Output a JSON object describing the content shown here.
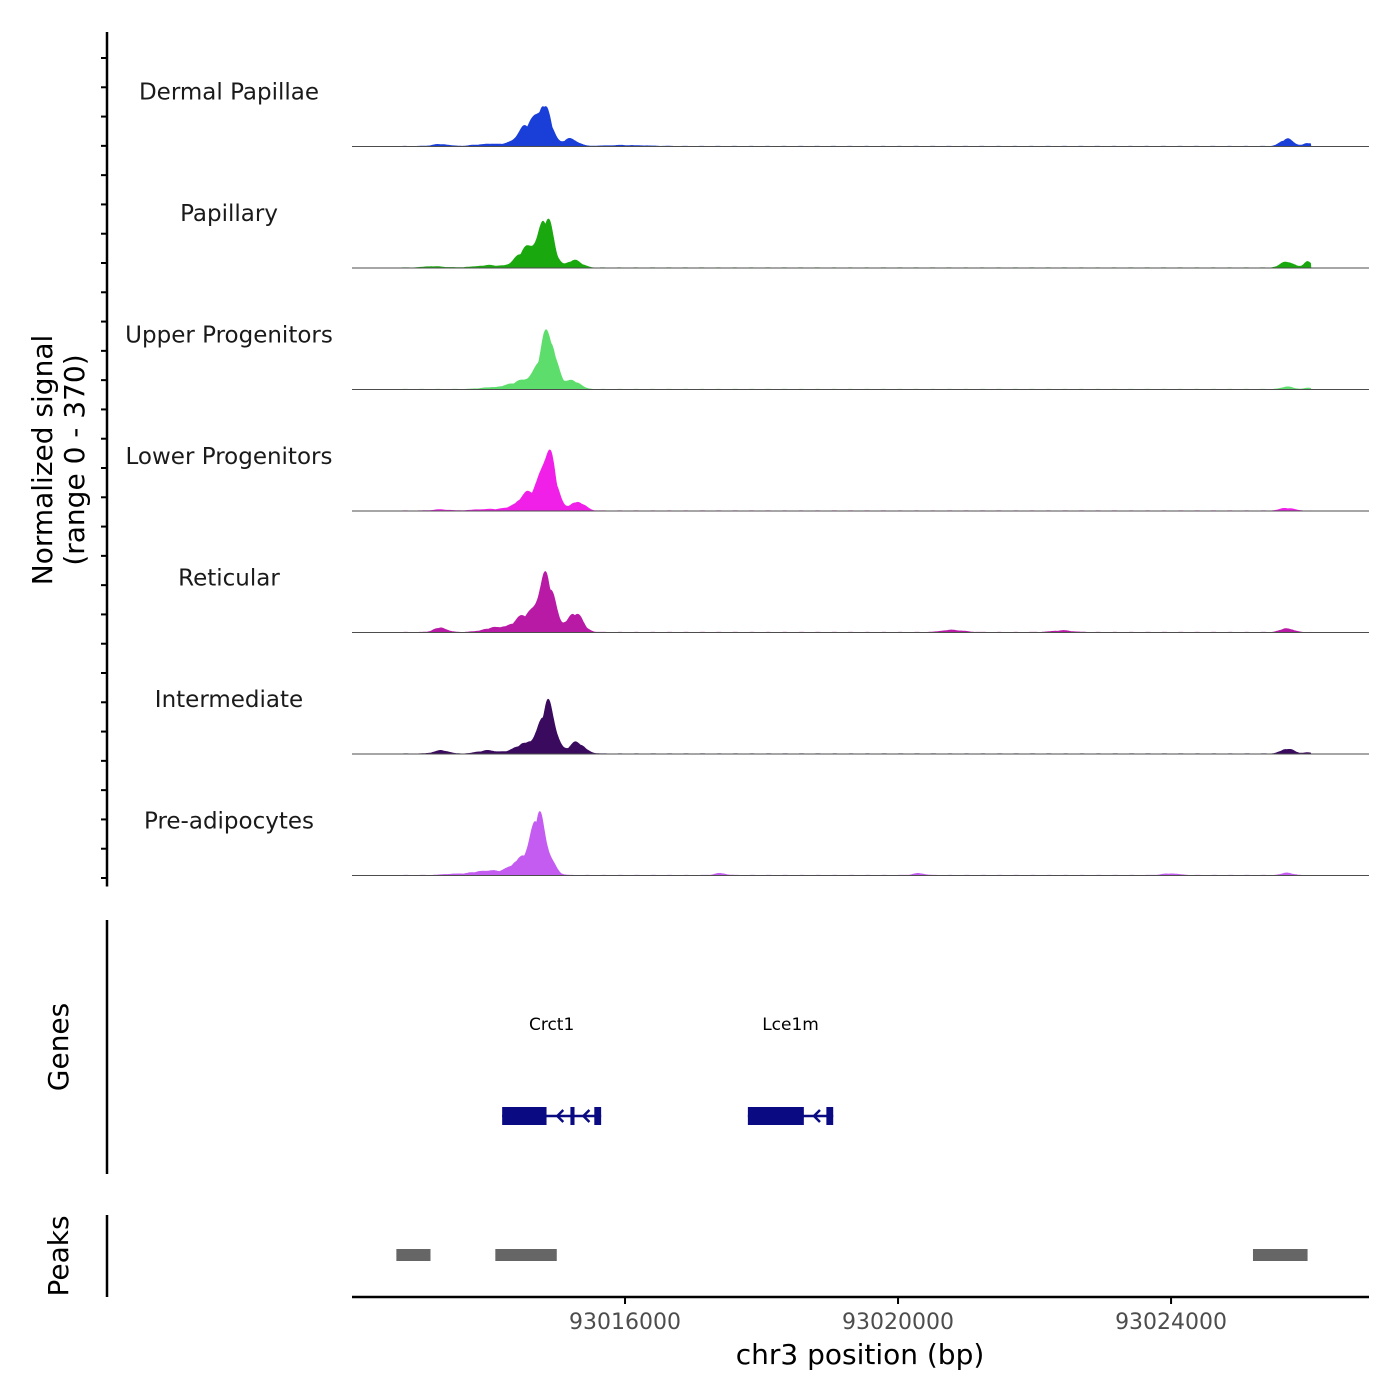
{
  "chart_data": {
    "type": "area",
    "title": "",
    "ylabel_line1": "Normalized signal",
    "ylabel_line2": "(range 0 - 370)",
    "xlabel": "chr3 position (bp)",
    "xlim": [
      93012000,
      93026900
    ],
    "ylim": [
      0,
      370
    ],
    "x_ticks": [
      93016000,
      93020000,
      93024000
    ],
    "x_tick_labels": [
      "93016000",
      "93020000",
      "93024000"
    ],
    "series": [
      {
        "name": "Dermal Papillae",
        "color": "#1a3fd9",
        "peaks": [
          [
            93014600,
            140,
            160
          ],
          [
            93014830,
            230,
            90
          ],
          [
            93015200,
            50,
            100
          ],
          [
            93013300,
            12,
            120
          ],
          [
            93014000,
            15,
            180
          ],
          [
            93025700,
            45,
            90
          ],
          [
            93026000,
            20,
            60
          ],
          [
            93016000,
            6,
            300
          ]
        ]
      },
      {
        "name": "Papillary",
        "color": "#1aa80f",
        "peaks": [
          [
            93014600,
            130,
            160
          ],
          [
            93014850,
            270,
            100
          ],
          [
            93015250,
            45,
            110
          ],
          [
            93014000,
            14,
            200
          ],
          [
            93025700,
            40,
            90
          ],
          [
            93026000,
            35,
            60
          ],
          [
            93013200,
            8,
            150
          ]
        ]
      },
      {
        "name": "Upper Progenitors",
        "color": "#5dde6c",
        "peaks": [
          [
            93014600,
            70,
            200
          ],
          [
            93014880,
            330,
            110
          ],
          [
            93015250,
            50,
            100
          ],
          [
            93014100,
            12,
            180
          ],
          [
            93025700,
            16,
            80
          ],
          [
            93026000,
            10,
            50
          ]
        ]
      },
      {
        "name": "Lower Progenitors",
        "color": "#f020e8",
        "peaks": [
          [
            93014600,
            110,
            170
          ],
          [
            93014880,
            370,
            100
          ],
          [
            93015300,
            60,
            100
          ],
          [
            93014000,
            10,
            200
          ],
          [
            93025700,
            16,
            100
          ],
          [
            93013300,
            7,
            120
          ]
        ]
      },
      {
        "name": "Reticular",
        "color": "#b81aa6",
        "peaks": [
          [
            93014600,
            110,
            200
          ],
          [
            93014850,
            300,
            110
          ],
          [
            93015260,
            120,
            110
          ],
          [
            93013300,
            30,
            90
          ],
          [
            93014100,
            25,
            180
          ],
          [
            93025700,
            25,
            90
          ],
          [
            93020800,
            14,
            150
          ],
          [
            93022400,
            10,
            150
          ]
        ]
      },
      {
        "name": "Intermediate",
        "color": "#3a0a5e",
        "peaks": [
          [
            93014600,
            80,
            170
          ],
          [
            93014880,
            300,
            100
          ],
          [
            93015300,
            70,
            110
          ],
          [
            93013300,
            22,
            100
          ],
          [
            93014000,
            20,
            150
          ],
          [
            93025700,
            32,
            90
          ],
          [
            93026000,
            8,
            60
          ]
        ]
      },
      {
        "name": "Pre-adipocytes",
        "color": "#c45cf2",
        "peaks": [
          [
            93014500,
            120,
            140
          ],
          [
            93014740,
            360,
            90
          ],
          [
            93014900,
            70,
            90
          ],
          [
            93014000,
            30,
            200
          ],
          [
            93013500,
            8,
            150
          ],
          [
            93017400,
            12,
            80
          ],
          [
            93020300,
            12,
            80
          ],
          [
            93024000,
            10,
            120
          ],
          [
            93025700,
            14,
            80
          ]
        ]
      }
    ],
    "genes_label": "Genes",
    "genes": [
      {
        "name": "Crct1",
        "start": 93014200,
        "end": 93015650,
        "strand": "-",
        "exons": [
          [
            93014200,
            93014850
          ],
          [
            93015200,
            93015260
          ],
          [
            93015550,
            93015650
          ]
        ]
      },
      {
        "name": "Lce1m",
        "start": 93017800,
        "end": 93019050,
        "strand": "-",
        "exons": [
          [
            93017800,
            93018620
          ],
          [
            93018950,
            93019050
          ]
        ]
      }
    ],
    "peaks_label": "Peaks",
    "peaks": [
      [
        93012650,
        93013150
      ],
      [
        93014100,
        93015000
      ],
      [
        93025200,
        93026000
      ]
    ],
    "colors": {
      "gene": "#0a0a82",
      "peak": "#666666",
      "axis": "#000000",
      "baseline": "#4d4d4d"
    }
  }
}
